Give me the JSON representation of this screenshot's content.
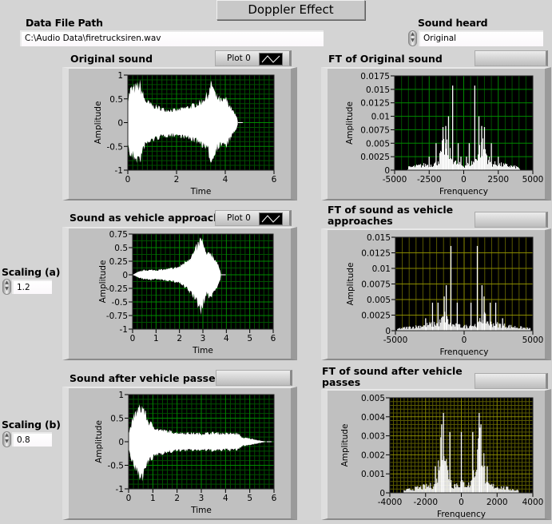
{
  "window": {
    "title": "Doppler Effect"
  },
  "file_path": {
    "label": "Data File Path",
    "value": "C:\\Audio Data\\firetrucksiren.wav"
  },
  "sound_heard": {
    "label": "Sound heard",
    "value": "Original"
  },
  "scaling_a": {
    "label": "Scaling (a)",
    "value": "1.2"
  },
  "scaling_b": {
    "label": "Scaling (b)",
    "value": "0.8"
  },
  "legend": {
    "plot_label": "Plot 0"
  },
  "colors": {
    "plot_bg": "#000000",
    "trace": "#ffffff",
    "grid_green": "#008a00",
    "grid_yellow": "#8a8a00",
    "panel": "#c0c0c0"
  },
  "chart_data": [
    {
      "id": "orig",
      "type": "area",
      "title": "Original sound",
      "xlabel": "Time",
      "ylabel": "Amplitude",
      "xlim": [
        0,
        6
      ],
      "ylim": [
        -1,
        1
      ],
      "x_ticks": [
        0,
        2,
        4,
        6
      ],
      "y_ticks": [
        -1,
        -0.5,
        0,
        0.5,
        1
      ],
      "grid": true,
      "grid_color": "green",
      "legend": "Plot 0",
      "envelope": [
        [
          0,
          0.55
        ],
        [
          0.1,
          0.8
        ],
        [
          0.3,
          0.85
        ],
        [
          0.5,
          0.92
        ],
        [
          0.7,
          0.55
        ],
        [
          1,
          0.42
        ],
        [
          1.5,
          0.32
        ],
        [
          2,
          0.3
        ],
        [
          2.3,
          0.35
        ],
        [
          2.6,
          0.4
        ],
        [
          3,
          0.5
        ],
        [
          3.3,
          0.7
        ],
        [
          3.45,
          0.97
        ],
        [
          3.6,
          0.65
        ],
        [
          3.9,
          0.5
        ],
        [
          4,
          0.6
        ],
        [
          4.2,
          0.4
        ],
        [
          4.5,
          0.1
        ],
        [
          4.52,
          0
        ]
      ]
    },
    {
      "id": "appr",
      "type": "area",
      "title": "Sound as vehicle approaches",
      "xlabel": "Time",
      "ylabel": "Amplitude",
      "xlim": [
        0,
        6
      ],
      "ylim": [
        -1,
        0.75
      ],
      "x_ticks": [
        0,
        1,
        2,
        3,
        4,
        5,
        6
      ],
      "y_ticks": [
        -1,
        -0.75,
        -0.5,
        -0.25,
        0,
        0.25,
        0.5,
        0.75
      ],
      "grid": true,
      "grid_color": "green",
      "legend": "Plot 0",
      "envelope": [
        [
          0,
          0
        ],
        [
          0.2,
          0.05
        ],
        [
          0.5,
          0.1
        ],
        [
          1,
          0.1
        ],
        [
          1.5,
          0.12
        ],
        [
          2,
          0.17
        ],
        [
          2.3,
          0.3
        ],
        [
          2.6,
          0.45
        ],
        [
          2.8,
          0.65
        ],
        [
          2.95,
          0.78
        ],
        [
          3.05,
          0.55
        ],
        [
          3.2,
          0.4
        ],
        [
          3.3,
          0.5
        ],
        [
          3.5,
          0.35
        ],
        [
          3.75,
          0.1
        ],
        [
          3.77,
          0
        ]
      ]
    },
    {
      "id": "after",
      "type": "area",
      "title": "Sound after vehicle passes",
      "xlabel": "Time",
      "ylabel": "Amplitude",
      "xlim": [
        0,
        6
      ],
      "ylim": [
        -1,
        1
      ],
      "x_ticks": [
        0,
        1,
        2,
        3,
        4,
        5,
        6
      ],
      "y_ticks": [
        -1,
        -0.5,
        0,
        0.5,
        1
      ],
      "grid": true,
      "grid_color": "green",
      "envelope": [
        [
          0,
          0.2
        ],
        [
          0.2,
          0.6
        ],
        [
          0.4,
          0.8
        ],
        [
          0.6,
          0.85
        ],
        [
          0.8,
          0.5
        ],
        [
          1.2,
          0.3
        ],
        [
          2,
          0.22
        ],
        [
          3,
          0.2
        ],
        [
          3.5,
          0.22
        ],
        [
          4,
          0.2
        ],
        [
          4.5,
          0.2
        ],
        [
          4.7,
          0.1
        ],
        [
          5,
          0.08
        ],
        [
          5.5,
          0.02
        ],
        [
          5.7,
          0
        ]
      ]
    },
    {
      "id": "ft_orig",
      "type": "bar",
      "title": "FT of Original sound",
      "xlabel": "Frenquency",
      "ylabel": "Amplitude",
      "xlim": [
        -5000,
        5000
      ],
      "ylim": [
        0,
        0.0175
      ],
      "x_ticks": [
        -5000,
        -2500,
        0,
        2500,
        5000
      ],
      "y_ticks": [
        0,
        0.0025,
        0.005,
        0.0075,
        0.01,
        0.0125,
        0.015,
        0.0175
      ],
      "grid": true,
      "grid_color": "green",
      "floor": [
        [
          -4100,
          0
        ],
        [
          -4000,
          0.0006
        ],
        [
          -3000,
          0.0011
        ],
        [
          -2000,
          0.0015
        ],
        [
          -1700,
          0.003
        ],
        [
          -1500,
          0.0055
        ],
        [
          -1100,
          0.0045
        ],
        [
          -800,
          0.002
        ],
        [
          -500,
          0.0015
        ],
        [
          0,
          0.001
        ],
        [
          500,
          0.0015
        ],
        [
          800,
          0.002
        ],
        [
          1100,
          0.0045
        ],
        [
          1500,
          0.0055
        ],
        [
          1700,
          0.003
        ],
        [
          2000,
          0.0015
        ],
        [
          3000,
          0.0011
        ],
        [
          4000,
          0.0006
        ],
        [
          4100,
          0
        ]
      ],
      "peaks": [
        [
          -800,
          0.0157
        ],
        [
          -1100,
          0.01
        ],
        [
          -1500,
          0.008
        ],
        [
          -1300,
          0.0082
        ],
        [
          -2000,
          0.005
        ],
        [
          -400,
          0.005
        ],
        [
          -2500,
          0.0025
        ],
        [
          -200,
          0.0025
        ],
        [
          800,
          0.0157
        ],
        [
          1100,
          0.01
        ],
        [
          1500,
          0.008
        ],
        [
          1300,
          0.0082
        ],
        [
          2000,
          0.005
        ],
        [
          400,
          0.005
        ],
        [
          2500,
          0.0025
        ],
        [
          200,
          0.0025
        ]
      ]
    },
    {
      "id": "ft_appr",
      "type": "bar",
      "title": "FT of sound as vehicle approaches",
      "xlabel": "Frenquency",
      "ylabel": "Amplitude",
      "xlim": [
        -5000,
        5000
      ],
      "ylim": [
        0,
        0.015
      ],
      "x_ticks": [
        -5000,
        0,
        5000
      ],
      "y_ticks": [
        0,
        0.0025,
        0.005,
        0.0075,
        0.01,
        0.0125,
        0.015
      ],
      "grid": true,
      "grid_color": "yellow",
      "floor": [
        [
          -4900,
          0
        ],
        [
          -4800,
          0.0004
        ],
        [
          -3500,
          0.0008
        ],
        [
          -2500,
          0.0012
        ],
        [
          -1800,
          0.0015
        ],
        [
          -1400,
          0.0028
        ],
        [
          -1000,
          0.0012
        ],
        [
          0,
          0.0008
        ],
        [
          1000,
          0.0012
        ],
        [
          1400,
          0.0028
        ],
        [
          1800,
          0.0015
        ],
        [
          2500,
          0.0012
        ],
        [
          3500,
          0.0008
        ],
        [
          4800,
          0.0004
        ],
        [
          4900,
          0
        ]
      ],
      "peaks": [
        [
          -960,
          0.0136
        ],
        [
          -1300,
          0.0073
        ],
        [
          -1450,
          0.0055
        ],
        [
          -1900,
          0.0045
        ],
        [
          -2300,
          0.0045
        ],
        [
          -500,
          0.0045
        ],
        [
          -2800,
          0.002
        ],
        [
          960,
          0.0136
        ],
        [
          1300,
          0.0073
        ],
        [
          1450,
          0.0055
        ],
        [
          1900,
          0.0045
        ],
        [
          2300,
          0.0045
        ],
        [
          500,
          0.0045
        ],
        [
          2800,
          0.002
        ]
      ]
    },
    {
      "id": "ft_after",
      "type": "bar",
      "title": "FT of sound after vehicle passes",
      "xlabel": "Frenquency",
      "ylabel": "Amplitude",
      "xlim": [
        -4000,
        4000
      ],
      "ylim": [
        0,
        0.005
      ],
      "x_ticks": [
        -4000,
        -2000,
        0,
        2000,
        4000
      ],
      "y_ticks": [
        0,
        0.001,
        0.002,
        0.003,
        0.004,
        0.005
      ],
      "grid": true,
      "grid_color": "yellow",
      "floor": [
        [
          -3250,
          0
        ],
        [
          -3200,
          0.00015
        ],
        [
          -2000,
          0.0004
        ],
        [
          -1400,
          0.0005
        ],
        [
          -1200,
          0.0025
        ],
        [
          -1000,
          0.0036
        ],
        [
          -800,
          0.0015
        ],
        [
          -500,
          0.0005
        ],
        [
          0,
          0.0006
        ],
        [
          500,
          0.0005
        ],
        [
          800,
          0.0015
        ],
        [
          1000,
          0.0036
        ],
        [
          1200,
          0.0025
        ],
        [
          1400,
          0.0005
        ],
        [
          2000,
          0.0004
        ],
        [
          3200,
          0.00015
        ],
        [
          3250,
          0
        ]
      ],
      "peaks": [
        [
          -1000,
          0.0042
        ],
        [
          -1100,
          0.0036
        ],
        [
          -640,
          0.0032
        ],
        [
          -1450,
          0.0014
        ],
        [
          0,
          0.0032
        ],
        [
          1000,
          0.0042
        ],
        [
          1100,
          0.0036
        ],
        [
          640,
          0.0032
        ],
        [
          1450,
          0.0014
        ]
      ]
    }
  ]
}
